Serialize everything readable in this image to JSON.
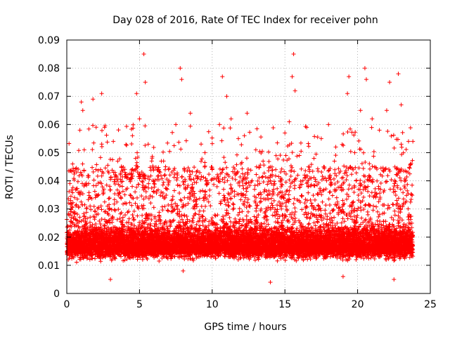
{
  "chart_data": {
    "type": "scatter",
    "title": "Day 028 of 2016, Rate Of TEC Index for receiver pohn",
    "xlabel": "GPS time / hours",
    "ylabel": "ROTI / TECUs",
    "xlim": [
      0,
      25
    ],
    "ylim": [
      0,
      0.09
    ],
    "x_ticks": [
      0,
      5,
      10,
      15,
      20,
      25
    ],
    "x_tick_labels": [
      "0",
      "5",
      "10",
      "15",
      "20",
      "25"
    ],
    "y_ticks": [
      0,
      0.01,
      0.02,
      0.03,
      0.04,
      0.05,
      0.06,
      0.07,
      0.08,
      0.09
    ],
    "y_tick_labels": [
      "0",
      "0.01",
      "0.02",
      "0.03",
      "0.04",
      "0.05",
      "0.06",
      "0.07",
      "0.08",
      "0.09"
    ],
    "grid": true,
    "marker": "plus",
    "marker_color": "#ff0000",
    "data_x_range": [
      0,
      23.8
    ],
    "series": [
      {
        "name": "ROTI",
        "points": [
          [
            0.1,
            0.012
          ],
          [
            0.3,
            0.03
          ],
          [
            0.4,
            0.046
          ],
          [
            0.6,
            0.018
          ],
          [
            0.9,
            0.058
          ],
          [
            1.0,
            0.068
          ],
          [
            1.1,
            0.065
          ],
          [
            1.2,
            0.051
          ],
          [
            1.5,
            0.039
          ],
          [
            1.8,
            0.069
          ],
          [
            2.0,
            0.044
          ],
          [
            2.4,
            0.071
          ],
          [
            2.6,
            0.059
          ],
          [
            2.8,
            0.031
          ],
          [
            3.2,
            0.054
          ],
          [
            3.5,
            0.047
          ],
          [
            4.0,
            0.043
          ],
          [
            4.5,
            0.038
          ],
          [
            4.8,
            0.071
          ],
          [
            5.0,
            0.062
          ],
          [
            5.3,
            0.085
          ],
          [
            5.4,
            0.075
          ],
          [
            5.6,
            0.053
          ],
          [
            6.0,
            0.039
          ],
          [
            6.5,
            0.047
          ],
          [
            7.0,
            0.044
          ],
          [
            7.5,
            0.06
          ],
          [
            7.8,
            0.08
          ],
          [
            7.9,
            0.076
          ],
          [
            8.5,
            0.064
          ],
          [
            9.0,
            0.041
          ],
          [
            9.5,
            0.05
          ],
          [
            10.0,
            0.044
          ],
          [
            10.5,
            0.06
          ],
          [
            10.7,
            0.077
          ],
          [
            11.0,
            0.07
          ],
          [
            11.3,
            0.062
          ],
          [
            11.8,
            0.055
          ],
          [
            12.4,
            0.064
          ],
          [
            13.0,
            0.051
          ],
          [
            13.5,
            0.047
          ],
          [
            14.0,
            0.04
          ],
          [
            14.5,
            0.035
          ],
          [
            15.0,
            0.057
          ],
          [
            15.3,
            0.061
          ],
          [
            15.5,
            0.077
          ],
          [
            15.6,
            0.085
          ],
          [
            15.7,
            0.072
          ],
          [
            16.5,
            0.059
          ],
          [
            17.0,
            0.048
          ],
          [
            17.5,
            0.055
          ],
          [
            18.0,
            0.06
          ],
          [
            18.5,
            0.052
          ],
          [
            19.3,
            0.071
          ],
          [
            19.4,
            0.077
          ],
          [
            19.8,
            0.05
          ],
          [
            20.2,
            0.065
          ],
          [
            20.5,
            0.08
          ],
          [
            20.6,
            0.076
          ],
          [
            21.0,
            0.062
          ],
          [
            21.5,
            0.058
          ],
          [
            22.0,
            0.065
          ],
          [
            22.2,
            0.075
          ],
          [
            22.8,
            0.078
          ],
          [
            23.0,
            0.067
          ],
          [
            23.5,
            0.054
          ],
          [
            23.8,
            0.054
          ],
          [
            3.0,
            0.005
          ],
          [
            8.0,
            0.008
          ],
          [
            14.0,
            0.004
          ],
          [
            19.0,
            0.006
          ],
          [
            22.5,
            0.005
          ]
        ]
      }
    ]
  }
}
